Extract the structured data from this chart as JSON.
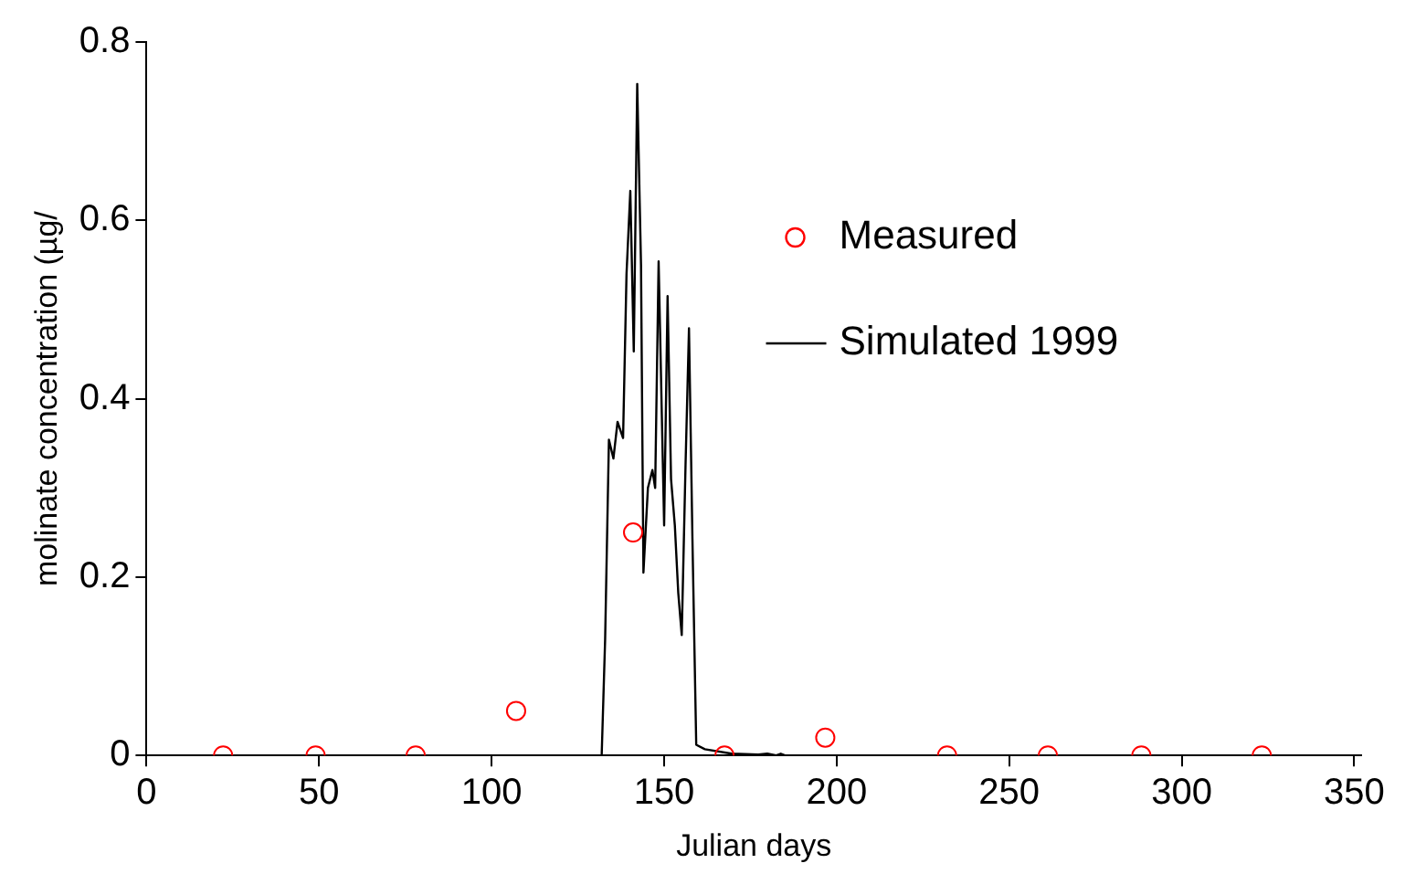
{
  "chart_data": {
    "type": "line",
    "xlabel": "Julian days",
    "ylabel": "molinate concentration (µg/",
    "xlim": [
      0,
      352
    ],
    "xticks": [
      0,
      50,
      100,
      150,
      200,
      250,
      300,
      350
    ],
    "ylim": [
      0,
      0.8
    ],
    "yticks": [
      0,
      0.2,
      0.4,
      0.6,
      0.8
    ],
    "grid": false,
    "legend": "top right",
    "series": [
      {
        "name": "Measured",
        "type": "scatter",
        "marker": "circle",
        "color": "#ff0000",
        "x": [
          22.2,
          49,
          78,
          107.1,
          141,
          167.5,
          196.7,
          232,
          261.2,
          288.3,
          323.2
        ],
        "values": [
          0,
          0,
          0,
          0.05,
          0.25,
          0,
          0.02,
          0,
          0,
          0,
          0
        ]
      },
      {
        "name": "Simulated 1999",
        "type": "line",
        "marker": "none",
        "line_style": "solid",
        "color": "#000000",
        "x": [
          0,
          131.9,
          132.9,
          134,
          135.3,
          136.5,
          138.1,
          139.1,
          140.2,
          141.2,
          142.2,
          143.3,
          144,
          145.3,
          146.6,
          147.4,
          148.4,
          150,
          151,
          152,
          153.1,
          154.1,
          155.1,
          156.2,
          157.2,
          158.2,
          159.3,
          161.8,
          169.6,
          177.3,
          179.9,
          182.5,
          183.8,
          185,
          352
        ],
        "values": [
          0,
          0,
          0.13,
          0.354,
          0.333,
          0.374,
          0.356,
          0.54,
          0.633,
          0.453,
          0.753,
          0.55,
          0.205,
          0.3,
          0.32,
          0.3,
          0.554,
          0.258,
          0.515,
          0.31,
          0.258,
          0.182,
          0.135,
          0.325,
          0.479,
          0.243,
          0.012,
          0.007,
          0.002,
          0.001,
          0.002,
          0,
          0.002,
          0,
          0
        ]
      }
    ]
  }
}
